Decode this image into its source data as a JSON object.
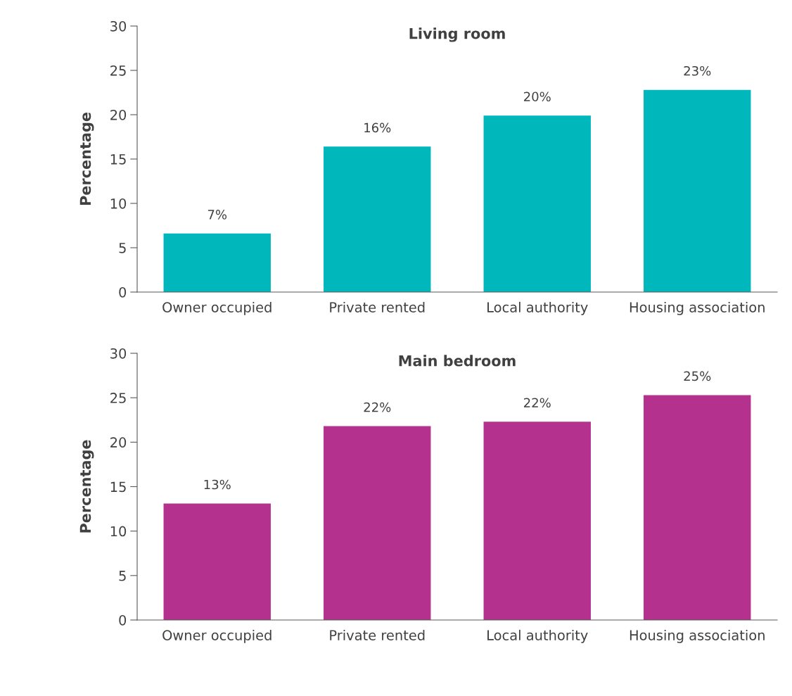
{
  "chart_data": [
    {
      "type": "bar",
      "title": "Living room",
      "ylabel": "Percentage",
      "categories": [
        "Owner occupied",
        "Private rented",
        "Local authority",
        "Housing association"
      ],
      "series": [
        {
          "color": "#00b8bc",
          "values": [
            6.6,
            16.4,
            19.9,
            22.8
          ],
          "value_labels": [
            "7%",
            "16%",
            "20%",
            "23%"
          ]
        }
      ],
      "ylim": [
        0,
        30
      ],
      "yticks": [
        0,
        5,
        10,
        15,
        20,
        25,
        30
      ],
      "grid": false,
      "legend": false
    },
    {
      "type": "bar",
      "title": "Main bedroom",
      "ylabel": "Percentage",
      "categories": [
        "Owner occupied",
        "Private rented",
        "Local authority",
        "Housing association"
      ],
      "series": [
        {
          "color": "#b5318e",
          "values": [
            13.1,
            21.8,
            22.3,
            25.3
          ],
          "value_labels": [
            "13%",
            "22%",
            "22%",
            "25%"
          ]
        }
      ],
      "ylim": [
        0,
        30
      ],
      "yticks": [
        0,
        5,
        10,
        15,
        20,
        25,
        30
      ],
      "grid": false,
      "legend": false
    }
  ]
}
